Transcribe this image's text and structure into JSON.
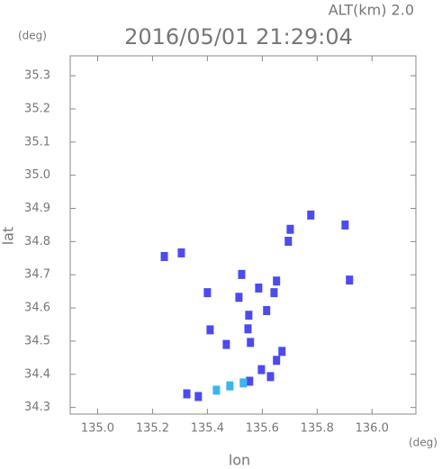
{
  "chart_data": {
    "type": "scatter",
    "title": "2016/05/01 21:29:04",
    "subtitle": "ALT(km) 2.0",
    "y_unit": "(deg)",
    "x_unit": "(deg)",
    "xlabel": "lon",
    "ylabel": "lat",
    "xlim": [
      134.9,
      136.16
    ],
    "ylim": [
      34.28,
      35.36
    ],
    "xticks": [
      {
        "value": 135,
        "label": "135.0"
      },
      135.2,
      135.4,
      135.6,
      135.8,
      {
        "value": 136,
        "label": "136.0"
      }
    ],
    "yticks": [
      34.3,
      34.4,
      34.5,
      34.6,
      34.7,
      34.8,
      34.9,
      {
        "value": 35,
        "label": "35.0"
      },
      35.1,
      35.2,
      35.3
    ],
    "series": [
      {
        "color": "#4b4bf0",
        "x": [
          135.243,
          135.305,
          135.777,
          135.902,
          135.918,
          135.702,
          135.695,
          135.652,
          135.525,
          135.4,
          135.515,
          135.551,
          135.548,
          135.557,
          135.616,
          135.597,
          135.672,
          135.652,
          135.554,
          135.63,
          135.41,
          135.469,
          135.325,
          135.367,
          135.643,
          135.587
        ],
        "values": [
          34.755,
          34.766,
          34.88,
          34.85,
          34.684,
          34.837,
          34.801,
          34.681,
          34.701,
          34.646,
          34.632,
          34.578,
          34.537,
          34.496,
          34.592,
          34.414,
          34.469,
          34.442,
          34.379,
          34.393,
          34.534,
          34.49,
          34.341,
          34.333,
          34.646,
          34.66
        ]
      },
      {
        "color": "#3cb4f0",
        "x": [
          135.433,
          135.482,
          135.531
        ],
        "values": [
          34.352,
          34.365,
          34.374
        ]
      }
    ]
  }
}
